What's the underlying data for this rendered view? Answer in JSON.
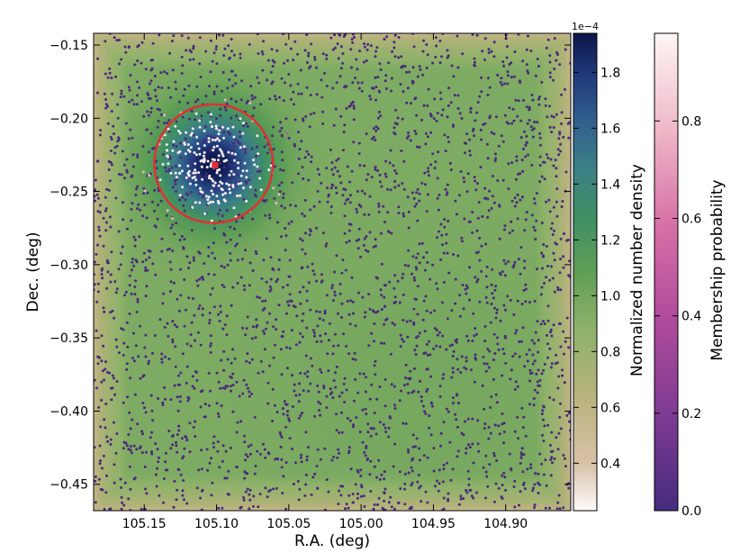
{
  "chart_data": {
    "type": "scatter",
    "xlabel": "R.A. (deg)",
    "ylabel": "Dec. (deg)",
    "xlim": [
      105.185,
      104.855
    ],
    "ylim": [
      -0.468,
      -0.142
    ],
    "x_ticks": [
      105.15,
      105.1,
      105.05,
      105.0,
      104.95,
      104.9
    ],
    "x_tick_labels": [
      "105.15",
      "105.10",
      "105.05",
      "105.00",
      "104.95",
      "104.90"
    ],
    "y_ticks": [
      -0.15,
      -0.2,
      -0.25,
      -0.3,
      -0.35,
      -0.4,
      -0.45
    ],
    "y_tick_labels": [
      "−0.15",
      "−0.20",
      "−0.25",
      "−0.30",
      "−0.35",
      "−0.40",
      "−0.45"
    ],
    "density_map": {
      "colormap": "gist_earth_r",
      "kernels": [
        {
          "ra": 105.102,
          "dec": -0.232,
          "amplitude": 0.000195,
          "sigma": 0.024
        },
        {
          "ra": 104.96,
          "dec": -0.385,
          "amplitude": 0.00011,
          "sigma": 0.07
        }
      ],
      "background": 9.5e-05,
      "edge_falloff_deg": 0.025
    },
    "overlays": {
      "circle": {
        "ra": 105.102,
        "dec": -0.231,
        "radius_deg": 0.041,
        "color": "#e03030"
      },
      "center_marker": {
        "ra": 105.101,
        "dec": -0.232,
        "color": "#e03030"
      }
    },
    "stars": {
      "field_count": 2700,
      "cluster_count": 220,
      "cluster_center": {
        "ra": 105.102,
        "dec": -0.232
      },
      "cluster_sigma_deg": 0.017
    },
    "colorbars": [
      {
        "name": "density",
        "label": "Normalized number density",
        "scale_label": "1e−4",
        "range": [
          0.23,
          1.94
        ],
        "ticks": [
          0.4,
          0.6,
          0.8,
          1.0,
          1.2,
          1.4,
          1.6,
          1.8
        ],
        "tick_labels": [
          "0.4",
          "0.6",
          "0.8",
          "1.0",
          "1.2",
          "1.4",
          "1.6",
          "1.8"
        ]
      },
      {
        "name": "membership",
        "label": "Membership probability",
        "range": [
          0.0,
          0.98
        ],
        "ticks": [
          0.0,
          0.2,
          0.4,
          0.6,
          0.8
        ],
        "tick_labels": [
          "0.0",
          "0.2",
          "0.4",
          "0.6",
          "0.8"
        ]
      }
    ]
  }
}
